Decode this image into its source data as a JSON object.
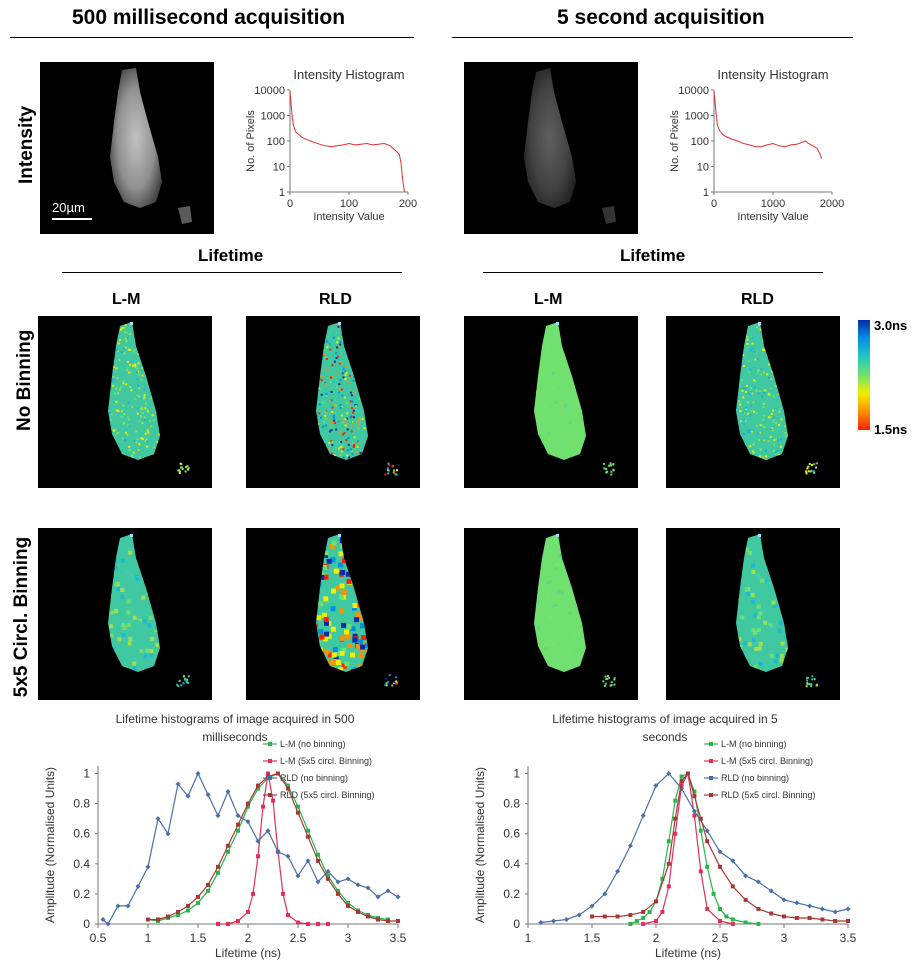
{
  "headers": {
    "left_title": "500 millisecond acquisition",
    "right_title": "5 second acquisition",
    "row_intensity": "Intensity",
    "row_no_binning": "No Binning",
    "row_binning": "5x5 Circl. Binning",
    "lifetime_left": "Lifetime",
    "lifetime_right": "Lifetime",
    "col_lm_left": "L-M",
    "col_rld_left": "RLD",
    "col_lm_right": "L-M",
    "col_rld_right": "RLD",
    "scale_bar": "20µm"
  },
  "colorbar": {
    "max_label": "3.0ns",
    "min_label": "1.5ns",
    "colors": [
      "#0a2aa8",
      "#0090e0",
      "#20c8c0",
      "#70e070",
      "#f0f000",
      "#ff9000",
      "#ff2000"
    ]
  },
  "chart_data": [
    {
      "type": "line",
      "title": "Intensity Histogram",
      "xlabel": "Intensity Value",
      "ylabel": "No. of Pixels",
      "yscale": "log",
      "xlim": [
        0,
        200
      ],
      "ylim": [
        1,
        10000
      ],
      "xticks": [
        "0",
        "100",
        "200"
      ],
      "yticks": [
        "1",
        "10",
        "100",
        "1000",
        "10000"
      ],
      "color": "#e03030",
      "series": [
        {
          "x": [
            0,
            2,
            4,
            6,
            10,
            15,
            20,
            30,
            40,
            50,
            60,
            70,
            80,
            90,
            100,
            110,
            120,
            130,
            140,
            150,
            160,
            170,
            175,
            180,
            185,
            188,
            190,
            192,
            194
          ],
          "values": [
            9000,
            2500,
            800,
            400,
            220,
            180,
            140,
            110,
            90,
            75,
            65,
            60,
            65,
            70,
            80,
            70,
            75,
            80,
            70,
            75,
            80,
            65,
            50,
            40,
            30,
            15,
            5,
            2,
            1
          ]
        }
      ]
    },
    {
      "type": "line",
      "title": "Intensity Histogram",
      "xlabel": "Intensity Value",
      "ylabel": "No. of Pixels",
      "yscale": "log",
      "xlim": [
        0,
        2000
      ],
      "ylim": [
        1,
        10000
      ],
      "xticks": [
        "0",
        "1000",
        "2000"
      ],
      "yticks": [
        "1",
        "10",
        "100",
        "1000",
        "10000"
      ],
      "color": "#e03030",
      "series": [
        {
          "x": [
            0,
            20,
            40,
            60,
            100,
            150,
            200,
            300,
            400,
            500,
            600,
            700,
            800,
            900,
            1000,
            1100,
            1200,
            1300,
            1400,
            1500,
            1550,
            1600,
            1650,
            1700,
            1750,
            1800,
            1820
          ],
          "values": [
            9000,
            3000,
            900,
            400,
            250,
            180,
            150,
            120,
            100,
            80,
            70,
            60,
            60,
            70,
            80,
            65,
            60,
            70,
            75,
            90,
            100,
            80,
            70,
            60,
            50,
            30,
            20
          ]
        }
      ]
    },
    {
      "type": "line",
      "title": "Lifetime histograms of image acquired in 500 milliseconds",
      "xlabel": "Lifetime (ns)",
      "ylabel": "Amplitude (Normalised Units)",
      "xlim": [
        0.5,
        3.5
      ],
      "ylim": [
        0,
        1.05
      ],
      "xticks": [
        "0.5",
        "1",
        "1.5",
        "2",
        "2.5",
        "3",
        "3.5"
      ],
      "yticks": [
        "0",
        "0.2",
        "0.4",
        "0.6",
        "0.8",
        "1"
      ],
      "series": [
        {
          "name": "L-M (no binning)",
          "color": "#2ab54a",
          "x": [
            1.0,
            1.1,
            1.2,
            1.3,
            1.4,
            1.5,
            1.6,
            1.7,
            1.8,
            1.9,
            2.0,
            2.1,
            2.2,
            2.3,
            2.4,
            2.5,
            2.6,
            2.7,
            2.8,
            2.9,
            3.0,
            3.1,
            3.2,
            3.3,
            3.4
          ],
          "values": [
            0.03,
            0.02,
            0.04,
            0.06,
            0.09,
            0.14,
            0.22,
            0.34,
            0.48,
            0.62,
            0.78,
            0.9,
            0.97,
            1.0,
            0.92,
            0.78,
            0.62,
            0.46,
            0.32,
            0.22,
            0.14,
            0.09,
            0.06,
            0.04,
            0.03
          ]
        },
        {
          "name": "L-M (5x5 circl. Binning)",
          "color": "#e0305a",
          "x": [
            1.7,
            1.8,
            1.9,
            2.0,
            2.05,
            2.1,
            2.15,
            2.2,
            2.25,
            2.3,
            2.35,
            2.4,
            2.5,
            2.6,
            2.7,
            2.8
          ],
          "values": [
            0.0,
            0.0,
            0.02,
            0.08,
            0.2,
            0.45,
            0.78,
            1.0,
            0.82,
            0.48,
            0.2,
            0.06,
            0.01,
            0.0,
            0.0,
            0.0
          ]
        },
        {
          "name": "RLD (no binning)",
          "color": "#4a6fa8",
          "x": [
            0.55,
            0.6,
            0.7,
            0.8,
            0.9,
            1.0,
            1.1,
            1.2,
            1.3,
            1.4,
            1.5,
            1.6,
            1.7,
            1.8,
            1.9,
            2.0,
            2.1,
            2.2,
            2.3,
            2.4,
            2.5,
            2.6,
            2.7,
            2.8,
            2.9,
            3.0,
            3.1,
            3.2,
            3.3,
            3.4,
            3.5
          ],
          "values": [
            0.03,
            0.0,
            0.12,
            0.12,
            0.25,
            0.38,
            0.7,
            0.6,
            0.93,
            0.85,
            1.0,
            0.86,
            0.72,
            0.88,
            0.72,
            0.68,
            0.55,
            0.62,
            0.48,
            0.45,
            0.32,
            0.42,
            0.28,
            0.35,
            0.28,
            0.3,
            0.26,
            0.24,
            0.18,
            0.22,
            0.18
          ]
        },
        {
          "name": "RLD (5x5 circl. Binning)",
          "color": "#a83838",
          "x": [
            1.0,
            1.1,
            1.2,
            1.3,
            1.4,
            1.5,
            1.6,
            1.7,
            1.8,
            1.9,
            2.0,
            2.1,
            2.2,
            2.3,
            2.4,
            2.5,
            2.6,
            2.7,
            2.8,
            2.9,
            3.0,
            3.1,
            3.2,
            3.3,
            3.4,
            3.5
          ],
          "values": [
            0.03,
            0.03,
            0.05,
            0.08,
            0.12,
            0.18,
            0.26,
            0.38,
            0.52,
            0.66,
            0.8,
            0.92,
            0.98,
            1.0,
            0.9,
            0.74,
            0.58,
            0.42,
            0.3,
            0.2,
            0.12,
            0.08,
            0.05,
            0.03,
            0.02,
            0.02
          ]
        }
      ],
      "legend": "top-right"
    },
    {
      "type": "line",
      "title": "Lifetime histograms of image acquired in 5 seconds",
      "xlabel": "Lifetime (ns)",
      "ylabel": "Amplitude (Normalised Units)",
      "xlim": [
        1,
        3.5
      ],
      "ylim": [
        0,
        1.05
      ],
      "xticks": [
        "1",
        "1.5",
        "2",
        "2.5",
        "3",
        "3.5"
      ],
      "yticks": [
        "0",
        "0.2",
        "0.4",
        "0.6",
        "0.8",
        "1"
      ],
      "series": [
        {
          "name": "L-M (no binning)",
          "color": "#2ab54a",
          "x": [
            1.8,
            1.85,
            1.9,
            1.95,
            2.0,
            2.05,
            2.1,
            2.15,
            2.2,
            2.25,
            2.3,
            2.35,
            2.4,
            2.45,
            2.5,
            2.55,
            2.6,
            2.7,
            2.8
          ],
          "values": [
            0.0,
            0.02,
            0.04,
            0.08,
            0.15,
            0.3,
            0.55,
            0.82,
            0.98,
            1.0,
            0.88,
            0.62,
            0.38,
            0.2,
            0.1,
            0.05,
            0.03,
            0.01,
            0.0
          ]
        },
        {
          "name": "L-M (5x5 circl. Binning)",
          "color": "#e0305a",
          "x": [
            1.9,
            2.0,
            2.05,
            2.1,
            2.15,
            2.2,
            2.25,
            2.3,
            2.35,
            2.4,
            2.5,
            2.6
          ],
          "values": [
            0.0,
            0.02,
            0.08,
            0.25,
            0.6,
            0.92,
            1.0,
            0.72,
            0.35,
            0.1,
            0.02,
            0.0
          ]
        },
        {
          "name": "RLD (no binning)",
          "color": "#4a6fa8",
          "x": [
            1.1,
            1.2,
            1.3,
            1.4,
            1.5,
            1.6,
            1.7,
            1.8,
            1.9,
            2.0,
            2.1,
            2.2,
            2.3,
            2.4,
            2.5,
            2.6,
            2.7,
            2.8,
            2.9,
            3.0,
            3.1,
            3.2,
            3.3,
            3.4,
            3.5
          ],
          "values": [
            0.01,
            0.02,
            0.03,
            0.06,
            0.12,
            0.2,
            0.35,
            0.52,
            0.72,
            0.92,
            1.0,
            0.9,
            0.75,
            0.62,
            0.48,
            0.42,
            0.32,
            0.28,
            0.22,
            0.16,
            0.14,
            0.12,
            0.1,
            0.08,
            0.1
          ]
        },
        {
          "name": "RLD (5x5 circl. Binning)",
          "color": "#a83838",
          "x": [
            1.5,
            1.6,
            1.7,
            1.8,
            1.9,
            2.0,
            2.1,
            2.15,
            2.2,
            2.25,
            2.3,
            2.35,
            2.4,
            2.5,
            2.6,
            2.7,
            2.8,
            2.9,
            3.0,
            3.1,
            3.2,
            3.3,
            3.4,
            3.5
          ],
          "values": [
            0.05,
            0.05,
            0.05,
            0.06,
            0.08,
            0.15,
            0.4,
            0.7,
            0.95,
            1.0,
            0.85,
            0.7,
            0.55,
            0.38,
            0.25,
            0.16,
            0.1,
            0.07,
            0.05,
            0.04,
            0.04,
            0.03,
            0.02,
            0.02
          ]
        }
      ],
      "legend": "top-right"
    }
  ]
}
